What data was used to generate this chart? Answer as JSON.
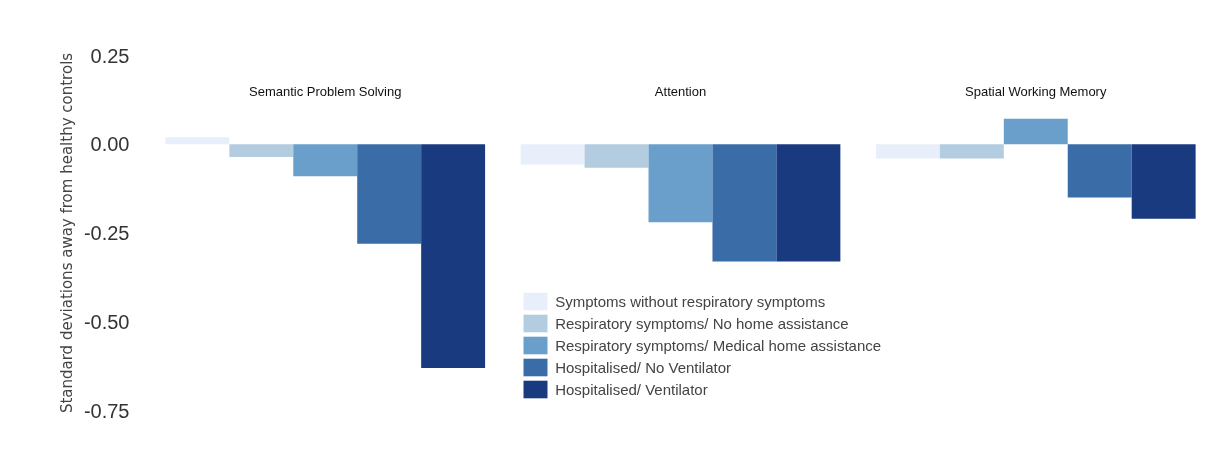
{
  "chart_data": {
    "type": "bar",
    "ylabel": "Standard deviations away from healthy controls",
    "categories": [
      "Semantic Problem Solving",
      "Attention",
      "Spatial Working Memory"
    ],
    "series": [
      {
        "name": "Symptoms without respiratory symptoms",
        "color": "#e8eefa",
        "values": [
          0.02,
          -0.057,
          -0.04
        ]
      },
      {
        "name": "Respiratory symptoms/ No home assistance",
        "color": "#b4cce0",
        "values": [
          -0.036,
          -0.066,
          -0.04
        ]
      },
      {
        "name": "Respiratory symptoms/ Medical home assistance",
        "color": "#6a9fcc",
        "values": [
          -0.09,
          -0.22,
          0.072
        ]
      },
      {
        "name": "Hospitalised/ No Ventilator",
        "color": "#3a6ca8",
        "values": [
          -0.28,
          -0.33,
          -0.15
        ]
      },
      {
        "name": "Hospitalised/ Ventilator",
        "color": "#1a3a80",
        "values": [
          -0.63,
          -0.33,
          -0.21
        ]
      }
    ],
    "ylim": [
      -0.75,
      0.25
    ],
    "yticks": [
      0.25,
      {
        "value": 0,
        "label": "0.00"
      },
      -0.25,
      {
        "value": -0.5,
        "label": "-0.50"
      },
      -0.75
    ],
    "grid": false,
    "legend": "bottom"
  }
}
